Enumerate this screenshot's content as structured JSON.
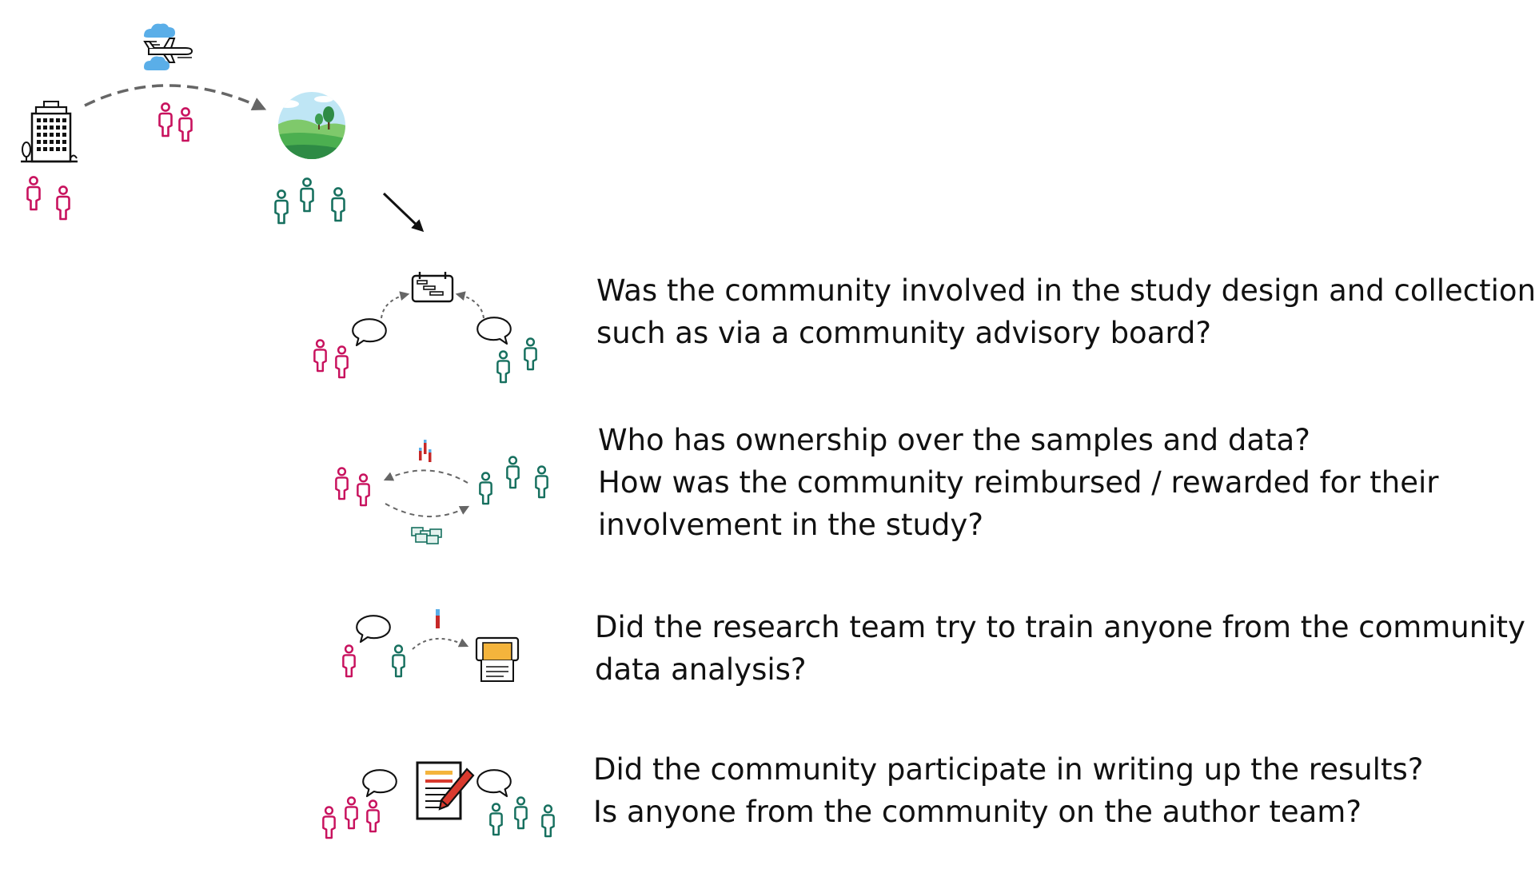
{
  "colors": {
    "researchers": "#c8125e",
    "community": "#17705f",
    "text": "#111111",
    "arrow": "#666666",
    "sky": "#5aaee8",
    "grass": "#4caf50",
    "pencil": "#d93a2e",
    "paper_accent": "#f4b43c"
  },
  "icons": {
    "building": "office-building-icon",
    "plane": "airplane-icon",
    "landscape": "landscape-icon",
    "calendar": "gantt-chart-icon",
    "samples": "sample-tubes-icon",
    "money": "banknotes-icon",
    "speech": "speech-bubble-icon",
    "sequencer": "sequencer-machine-icon",
    "document": "document-editing-icon",
    "person": "person-icon"
  },
  "questions": [
    {
      "lines": [
        "Was the community involved in the study design and collection,",
        "such as via a community advisory board?"
      ]
    },
    {
      "lines": [
        "Who has ownership over the samples and data?",
        "How was the community reimbursed / rewarded for their",
        "involvement in the study?"
      ]
    },
    {
      "lines": [
        "Did the research team try to train anyone from the community in",
        "data analysis?"
      ]
    },
    {
      "lines": [
        "Did the community participate in writing up the results?",
        "Is anyone from the community on the author team?"
      ]
    }
  ]
}
